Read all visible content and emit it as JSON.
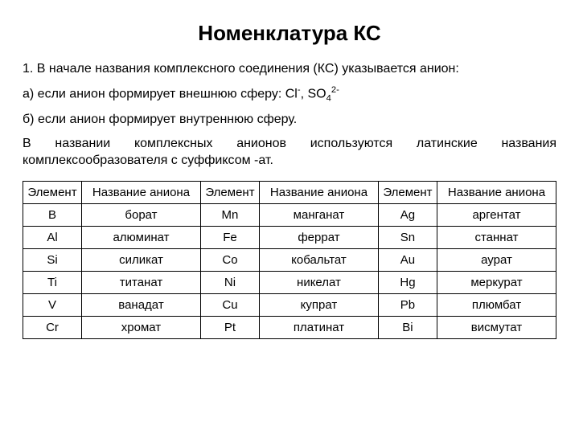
{
  "title": "Номенклатура КС",
  "p1": "1. В начале названия комплексного соединения (КС) указывается анион:",
  "p2_pre": "а) если анион формирует внешнюю сферу: Cl",
  "p2_sup1": "-",
  "p2_mid": ", SO",
  "p2_sub": "4",
  "p2_sup2": "2-",
  "p3": "б) если анион формирует внутреннюю сферу.",
  "p4": "В названии комплексных анионов используются латинские названия комплексообразователя с суффиксом -ат.",
  "table": {
    "headers": {
      "element": "Элемент",
      "anion": "Название аниона"
    },
    "rows": [
      {
        "e1": "B",
        "a1": "борат",
        "e2": "Mn",
        "a2": "манганат",
        "e3": "Ag",
        "a3": "аргентат"
      },
      {
        "e1": "Al",
        "a1": "алюминат",
        "e2": "Fe",
        "a2": "феррат",
        "e3": "Sn",
        "a3": "станнат"
      },
      {
        "e1": "Si",
        "a1": "силикат",
        "e2": "Co",
        "a2": "кобальтат",
        "e3": "Au",
        "a3": "аурат"
      },
      {
        "e1": "Ti",
        "a1": "титанат",
        "e2": "Ni",
        "a2": "никелат",
        "e3": "Hg",
        "a3": "меркурат"
      },
      {
        "e1": "V",
        "a1": "ванадат",
        "e2": "Cu",
        "a2": "купрат",
        "e3": "Pb",
        "a3": "плюмбат"
      },
      {
        "e1": "Cr",
        "a1": "хромат",
        "e2": "Pt",
        "a2": "платинат",
        "e3": "Bi",
        "a3": "висмутат"
      }
    ]
  },
  "style": {
    "background_color": "#ffffff",
    "text_color": "#000000",
    "border_color": "#000000",
    "title_fontsize": 26,
    "body_fontsize": 16,
    "table_fontsize": 15
  }
}
